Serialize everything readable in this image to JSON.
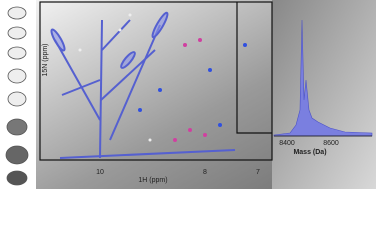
{
  "nmr": {
    "x_label": "1H (ppm)",
    "x_ticks": [
      "10",
      "8",
      "7"
    ],
    "y_label": "15N (ppm)"
  },
  "spectrum": {
    "x_label": "Mass (Da)",
    "x_ticks": [
      "8400",
      "8600"
    ]
  }
}
